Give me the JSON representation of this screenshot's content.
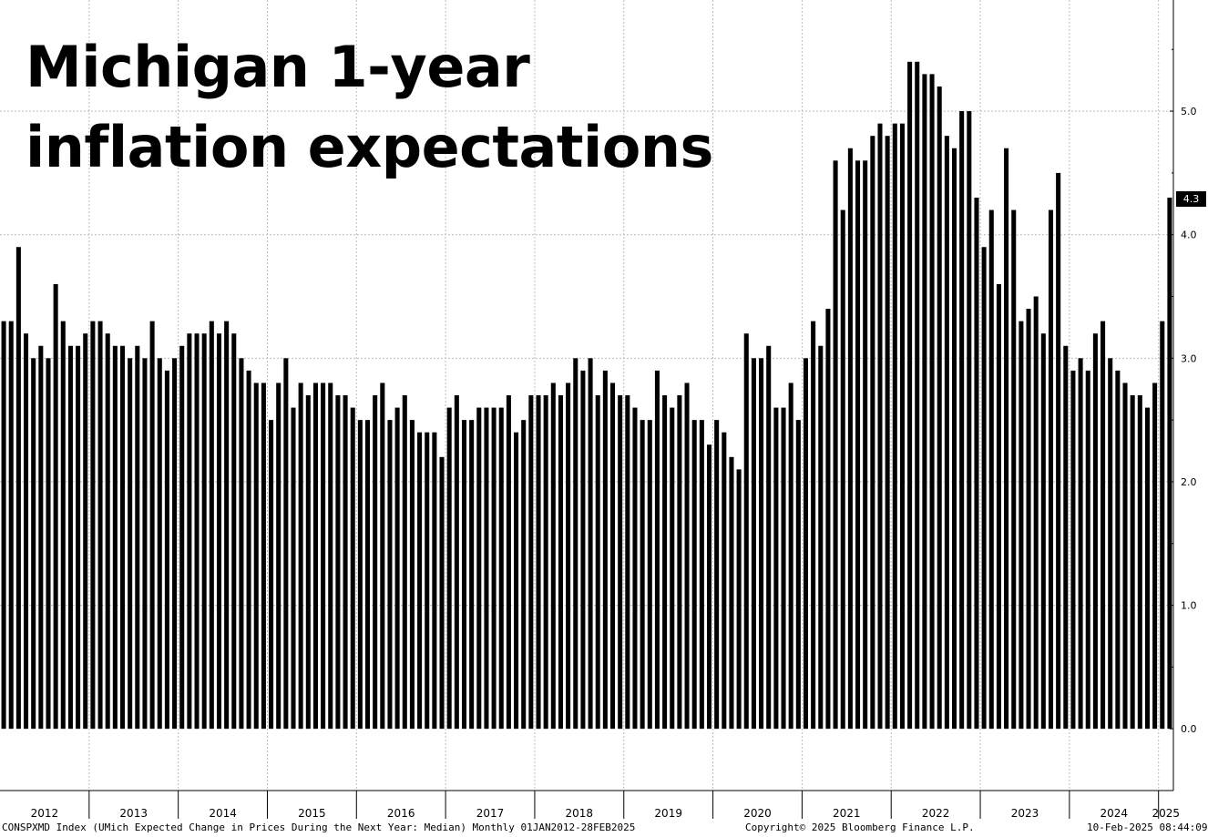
{
  "title_lines": [
    "Michigan 1-year",
    "inflation expectations"
  ],
  "footer": {
    "source": "CONSPXMD Index (UMich Expected Change in Prices During the Next Year: Median)  Monthly 01JAN2012-28FEB2025",
    "copyright": "Copyright© 2025 Bloomberg Finance L.P.",
    "timestamp": "10-Feb-2025 08:44:09"
  },
  "last_value_label": "4.3",
  "chart_data": {
    "type": "bar",
    "title": "Michigan 1-year inflation expectations",
    "frequency": "Monthly",
    "x_start": "2012-01",
    "x_end": "2025-02",
    "years": [
      "2012",
      "2013",
      "2014",
      "2015",
      "2016",
      "2017",
      "2018",
      "2019",
      "2020",
      "2021",
      "2022",
      "2023",
      "2024",
      "2025"
    ],
    "y_ticks": [
      "0.0",
      "1.0",
      "2.0",
      "3.0",
      "4.0",
      "5.0"
    ],
    "ylim": [
      -0.5,
      5.9
    ],
    "grid": true,
    "bar_color": "#000000",
    "values": [
      3.3,
      3.3,
      3.9,
      3.2,
      3.0,
      3.1,
      3.0,
      3.6,
      3.3,
      3.1,
      3.1,
      3.2,
      3.3,
      3.3,
      3.2,
      3.1,
      3.1,
      3.0,
      3.1,
      3.0,
      3.3,
      3.0,
      2.9,
      3.0,
      3.1,
      3.2,
      3.2,
      3.2,
      3.3,
      3.2,
      3.3,
      3.2,
      3.0,
      2.9,
      2.8,
      2.8,
      2.5,
      2.8,
      3.0,
      2.6,
      2.8,
      2.7,
      2.8,
      2.8,
      2.8,
      2.7,
      2.7,
      2.6,
      2.5,
      2.5,
      2.7,
      2.8,
      2.5,
      2.6,
      2.7,
      2.5,
      2.4,
      2.4,
      2.4,
      2.2,
      2.6,
      2.7,
      2.5,
      2.5,
      2.6,
      2.6,
      2.6,
      2.6,
      2.7,
      2.4,
      2.5,
      2.7,
      2.7,
      2.7,
      2.8,
      2.7,
      2.8,
      3.0,
      2.9,
      3.0,
      2.7,
      2.9,
      2.8,
      2.7,
      2.7,
      2.6,
      2.5,
      2.5,
      2.9,
      2.7,
      2.6,
      2.7,
      2.8,
      2.5,
      2.5,
      2.3,
      2.5,
      2.4,
      2.2,
      2.1,
      3.2,
      3.0,
      3.0,
      3.1,
      2.6,
      2.6,
      2.8,
      2.5,
      3.0,
      3.3,
      3.1,
      3.4,
      4.6,
      4.2,
      4.7,
      4.6,
      4.6,
      4.8,
      4.9,
      4.8,
      4.9,
      4.9,
      5.4,
      5.4,
      5.3,
      5.3,
      5.2,
      4.8,
      4.7,
      5.0,
      5.0,
      4.3,
      3.9,
      4.2,
      3.6,
      4.7,
      4.2,
      3.3,
      3.4,
      3.5,
      3.2,
      4.2,
      4.5,
      3.1,
      2.9,
      3.0,
      2.9,
      3.2,
      3.3,
      3.0,
      2.9,
      2.8,
      2.7,
      2.7,
      2.6,
      2.8,
      3.3,
      4.3
    ]
  }
}
